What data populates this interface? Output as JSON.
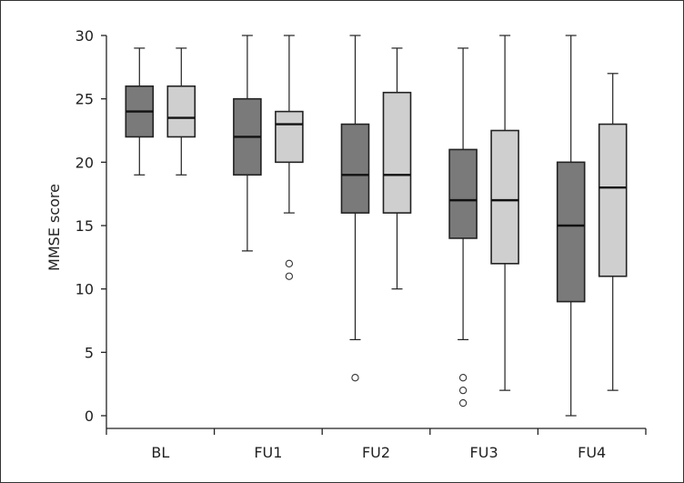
{
  "chart_data": {
    "type": "boxplot",
    "title": "",
    "xlabel": "",
    "ylabel": "MMSE score",
    "ylim": [
      0,
      30
    ],
    "yticks": [
      0,
      5,
      10,
      15,
      20,
      25,
      30
    ],
    "grid": false,
    "categories": [
      "BL",
      "FU1",
      "FU2",
      "FU3",
      "FU4"
    ],
    "series": [
      {
        "color": "#7a7a7a",
        "boxes": [
          {
            "category": "BL",
            "whisker_low": 19,
            "q1": 22,
            "median": 24,
            "q3": 26,
            "whisker_high": 29,
            "outliers": []
          },
          {
            "category": "FU1",
            "whisker_low": 13,
            "q1": 19,
            "median": 22,
            "q3": 25,
            "whisker_high": 30,
            "outliers": []
          },
          {
            "category": "FU2",
            "whisker_low": 6,
            "q1": 16,
            "median": 19,
            "q3": 23,
            "whisker_high": 30,
            "outliers": [
              3
            ]
          },
          {
            "category": "FU3",
            "whisker_low": 6,
            "q1": 14,
            "median": 17,
            "q3": 21,
            "whisker_high": 29,
            "outliers": [
              3,
              2,
              1
            ]
          },
          {
            "category": "FU4",
            "whisker_low": 0,
            "q1": 9,
            "median": 15,
            "q3": 20,
            "whisker_high": 30,
            "outliers": []
          }
        ]
      },
      {
        "color": "#cfcfcf",
        "boxes": [
          {
            "category": "BL",
            "whisker_low": 19,
            "q1": 22,
            "median": 23.5,
            "q3": 26,
            "whisker_high": 29,
            "outliers": []
          },
          {
            "category": "FU1",
            "whisker_low": 16,
            "q1": 20,
            "median": 23,
            "q3": 24,
            "whisker_high": 30,
            "outliers": [
              12,
              11
            ]
          },
          {
            "category": "FU2",
            "whisker_low": 10,
            "q1": 16,
            "median": 19,
            "q3": 25.5,
            "whisker_high": 29,
            "outliers": []
          },
          {
            "category": "FU3",
            "whisker_low": 2,
            "q1": 12,
            "median": 17,
            "q3": 22.5,
            "whisker_high": 30,
            "outliers": []
          },
          {
            "category": "FU4",
            "whisker_low": 2,
            "q1": 11,
            "median": 18,
            "q3": 23,
            "whisker_high": 27,
            "outliers": []
          }
        ]
      }
    ]
  }
}
